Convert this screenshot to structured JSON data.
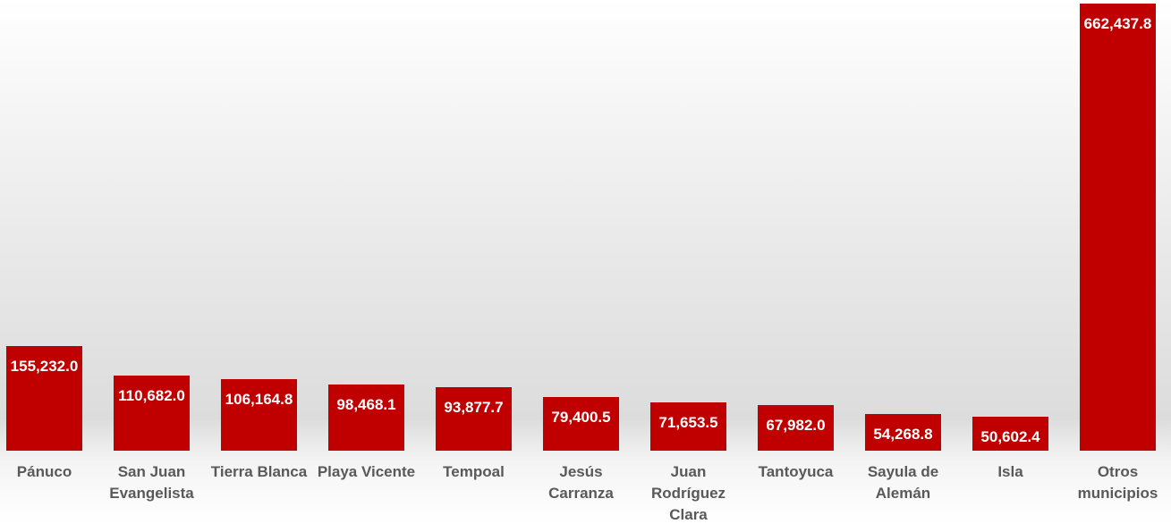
{
  "chart_data": {
    "type": "bar",
    "categories": [
      "Pánuco",
      "San Juan Evangelista",
      "Tierra Blanca",
      "Playa Vicente",
      "Tempoal",
      "Jesús Carranza",
      "Juan Rodríguez Clara",
      "Tantoyuca",
      "Sayula de Alemán",
      "Isla",
      "Otros municipios"
    ],
    "values": [
      155232.0,
      110682.0,
      106164.8,
      98468.1,
      93877.7,
      79400.5,
      71653.5,
      67982.0,
      54268.8,
      50602.4,
      662437.8
    ],
    "value_labels": [
      "155,232.0",
      "110,682.0",
      "106,164.8",
      "98,468.1",
      "93,877.7",
      "79,400.5",
      "71,653.5",
      "67,982.0",
      "54,268.8",
      "50,602.4",
      "662,437.8"
    ],
    "color": "#c00000"
  }
}
